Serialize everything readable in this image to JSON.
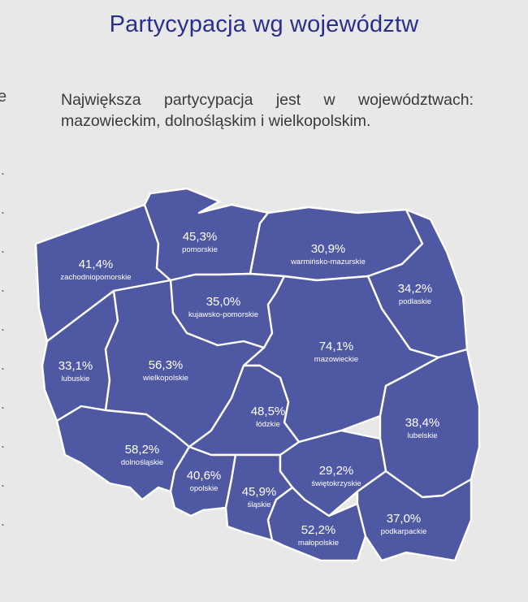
{
  "page": {
    "title": "Partycypacja wg województw",
    "left_clip_char": "e",
    "description": "Największa partycypacja jest w województwach: mazowieckim, dolnośląskim i wielkopolskim."
  },
  "colors": {
    "region": "#4f58a3",
    "border": "#ffffff",
    "title": "#2b2f8c"
  },
  "chart_data": {
    "type": "choropleth",
    "unit": "%",
    "regions": [
      {
        "key": "zachodniopomorskie",
        "label": "zachodniopomorskie",
        "value": 41.4,
        "display": "41,4%"
      },
      {
        "key": "pomorskie",
        "label": "pomorskie",
        "value": 45.3,
        "display": "45,3%"
      },
      {
        "key": "warminsko-mazurskie",
        "label": "warmińsko-mazurskie",
        "value": 30.9,
        "display": "30,9%"
      },
      {
        "key": "podlaskie",
        "label": "podlaskie",
        "value": 34.2,
        "display": "34,2%"
      },
      {
        "key": "kujawsko-pomorskie",
        "label": "kujawsko-pomorskie",
        "value": 35.0,
        "display": "35,0%"
      },
      {
        "key": "lubuskie",
        "label": "lubuskie",
        "value": 33.1,
        "display": "33,1%"
      },
      {
        "key": "wielkopolskie",
        "label": "wielkopolskie",
        "value": 56.3,
        "display": "56,3%"
      },
      {
        "key": "mazowieckie",
        "label": "mazowieckie",
        "value": 74.1,
        "display": "74,1%"
      },
      {
        "key": "lodzkie",
        "label": "łódzkie",
        "value": 48.5,
        "display": "48,5%"
      },
      {
        "key": "lubelskie",
        "label": "lubelskie",
        "value": 38.4,
        "display": "38,4%"
      },
      {
        "key": "dolnoslaskie",
        "label": "dolnośląskie",
        "value": 58.2,
        "display": "58,2%"
      },
      {
        "key": "opolskie",
        "label": "opolskie",
        "value": 40.6,
        "display": "40,6%"
      },
      {
        "key": "slaskie",
        "label": "śląskie",
        "value": 45.9,
        "display": "45,9%"
      },
      {
        "key": "swietokrzyskie",
        "label": "świętokrzyskie",
        "value": 29.2,
        "display": "29,2%"
      },
      {
        "key": "malopolskie",
        "label": "małopolskie",
        "value": 52.2,
        "display": "52,2%"
      },
      {
        "key": "podkarpackie",
        "label": "podkarpackie",
        "value": 37.0,
        "display": "37,0%"
      }
    ]
  }
}
